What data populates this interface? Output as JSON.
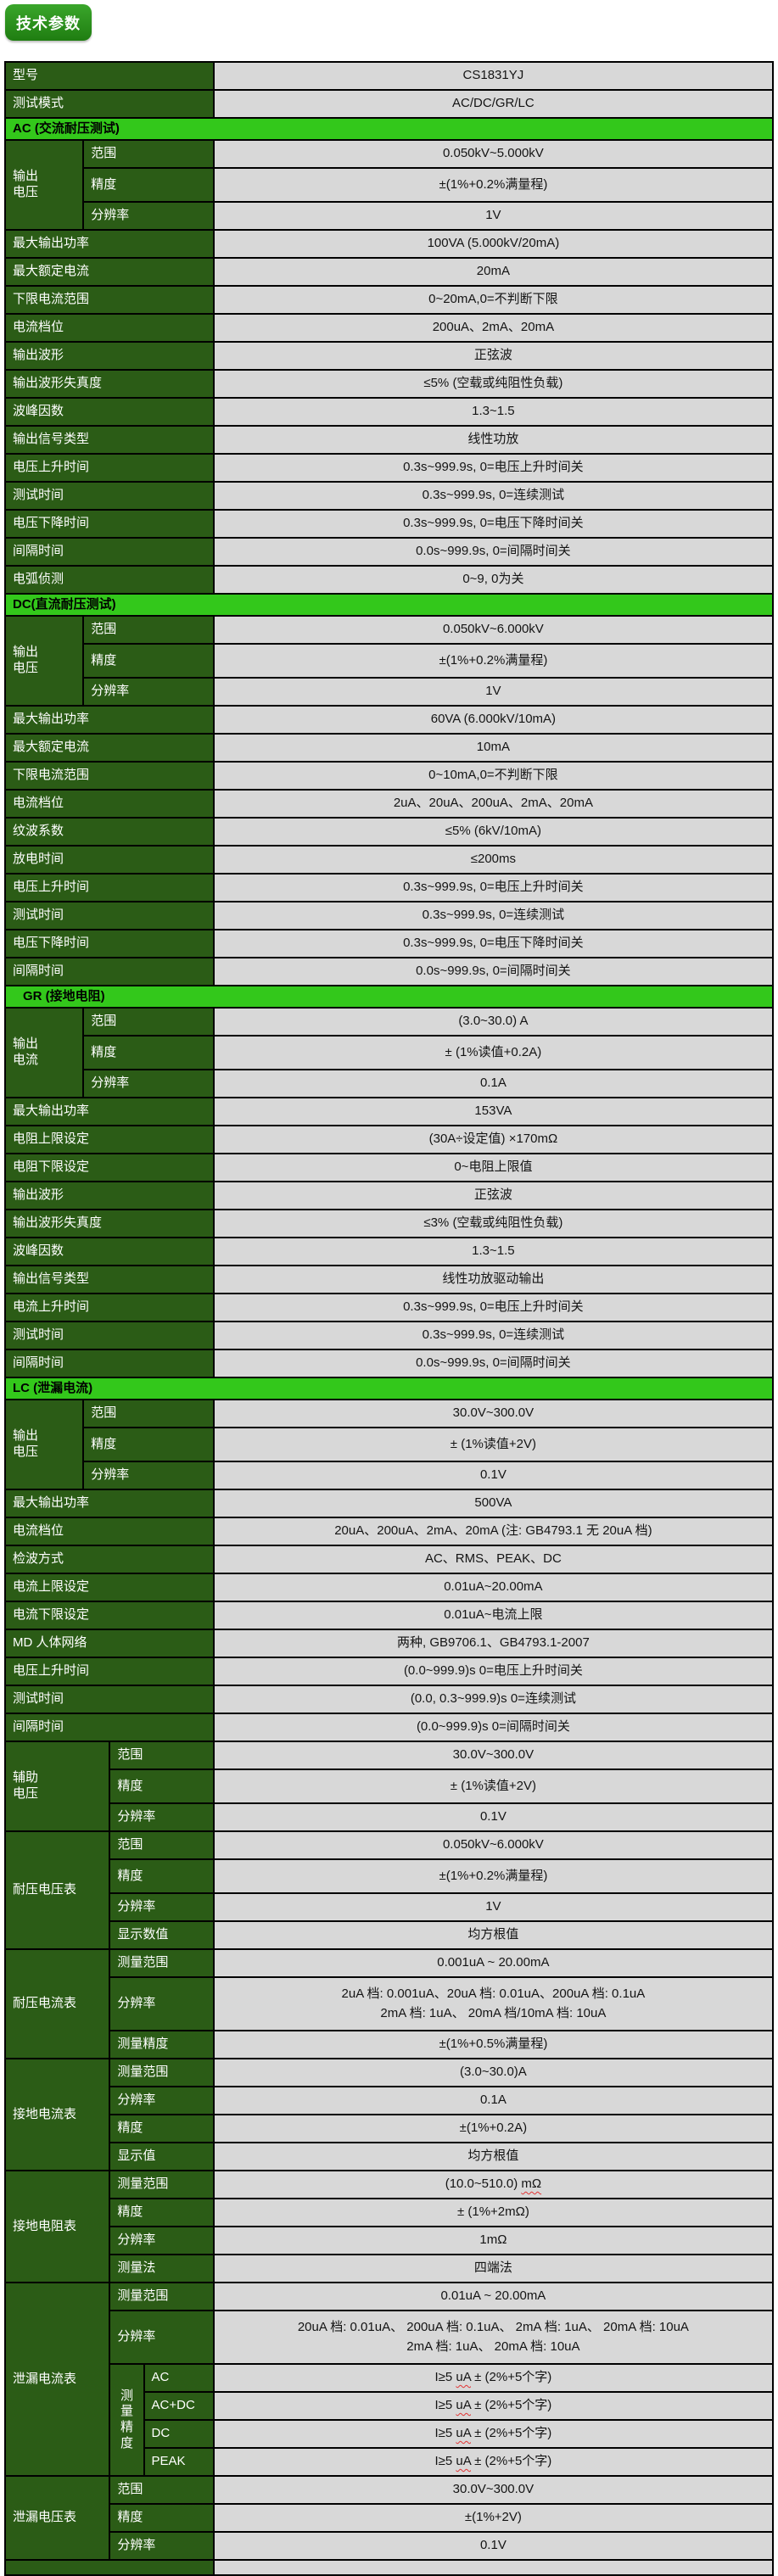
{
  "badge": {
    "label": "技术参数"
  },
  "colors": {
    "label_bg": "#2b5c16",
    "section_bg": "#33c81b",
    "value_bg": "#d8d8d8",
    "badge_top": "#3aa62b",
    "badge_bottom": "#1f7d11",
    "squiggle": "#e23333"
  },
  "table": {
    "blocks": [
      {
        "kind": "row",
        "label": "型号",
        "value": "CS1831YJ"
      },
      {
        "kind": "row",
        "label": "测试模式",
        "value": "AC/DC/GR/LC"
      },
      {
        "kind": "header",
        "text": "AC (交流耐压测试)",
        "pad": 8
      },
      {
        "kind": "group",
        "wide": false,
        "label": "输出\n电压",
        "rows": [
          {
            "label": "范围",
            "value": "0.050kV~5.000kV"
          },
          {
            "label": "精度",
            "value": "±(1%+0.2%满量程)",
            "h": 40
          },
          {
            "label": "分辨率",
            "value": "1V"
          }
        ]
      },
      {
        "kind": "row",
        "label": "最大输出功率",
        "value": "100VA (5.000kV/20mA)"
      },
      {
        "kind": "row",
        "label": "最大额定电流",
        "value": "20mA"
      },
      {
        "kind": "row",
        "label": "下限电流范围",
        "value": "0~20mA,0=不判断下限"
      },
      {
        "kind": "row",
        "label": "电流档位",
        "value": "200uA、2mA、20mA"
      },
      {
        "kind": "row",
        "label": "输出波形",
        "value": "正弦波"
      },
      {
        "kind": "row",
        "label": "输出波形失真度",
        "value": "≤5% (空载或纯阻性负载)"
      },
      {
        "kind": "row",
        "label": "波峰因数",
        "value": "1.3~1.5"
      },
      {
        "kind": "row",
        "label": "输出信号类型",
        "value": "线性功放"
      },
      {
        "kind": "row",
        "label": "电压上升时间",
        "value": "0.3s~999.9s, 0=电压上升时间关"
      },
      {
        "kind": "row",
        "label": "测试时间",
        "value": "0.3s~999.9s, 0=连续测试"
      },
      {
        "kind": "row",
        "label": "电压下降时间",
        "value": "0.3s~999.9s, 0=电压下降时间关"
      },
      {
        "kind": "row",
        "label": "间隔时间",
        "value": "0.0s~999.9s, 0=间隔时间关"
      },
      {
        "kind": "row",
        "label": "电弧侦测",
        "value": "0~9, 0为关"
      },
      {
        "kind": "header",
        "text": "DC(直流耐压测试)",
        "pad": 8
      },
      {
        "kind": "group",
        "wide": false,
        "label": "输出\n电压",
        "rows": [
          {
            "label": "范围",
            "value": "0.050kV~6.000kV"
          },
          {
            "label": "精度",
            "value": "±(1%+0.2%满量程)",
            "h": 40
          },
          {
            "label": "分辨率",
            "value": "1V"
          }
        ]
      },
      {
        "kind": "row",
        "label": "最大输出功率",
        "value": "60VA (6.000kV/10mA)"
      },
      {
        "kind": "row",
        "label": "最大额定电流",
        "value": "10mA"
      },
      {
        "kind": "row",
        "label": "下限电流范围",
        "value": "0~10mA,0=不判断下限"
      },
      {
        "kind": "row",
        "label": "电流档位",
        "value": "2uA、20uA、200uA、2mA、20mA"
      },
      {
        "kind": "row",
        "label": "纹波系数",
        "value": "≤5% (6kV/10mA)"
      },
      {
        "kind": "row",
        "label": "放电时间",
        "value": "≤200ms"
      },
      {
        "kind": "row",
        "label": "电压上升时间",
        "value": "0.3s~999.9s, 0=电压上升时间关"
      },
      {
        "kind": "row",
        "label": "测试时间",
        "value": "0.3s~999.9s, 0=连续测试"
      },
      {
        "kind": "row",
        "label": "电压下降时间",
        "value": "0.3s~999.9s, 0=电压下降时间关"
      },
      {
        "kind": "row",
        "label": "间隔时间",
        "value": "0.0s~999.9s, 0=间隔时间关"
      },
      {
        "kind": "header",
        "text": "GR (接地电阻)",
        "pad": 20
      },
      {
        "kind": "group",
        "wide": false,
        "label": "输出\n电流",
        "rows": [
          {
            "label": "范围",
            "value": "(3.0~30.0) A"
          },
          {
            "label": "精度",
            "value": "± (1%读值+0.2A)",
            "h": 40
          },
          {
            "label": "分辨率",
            "value": "0.1A"
          }
        ]
      },
      {
        "kind": "row",
        "label": "最大输出功率",
        "value": "153VA"
      },
      {
        "kind": "row",
        "label": "电阻上限设定",
        "value": "(30A÷设定值) ×170mΩ"
      },
      {
        "kind": "row",
        "label": "电阻下限设定",
        "value": "0~电阻上限值"
      },
      {
        "kind": "row",
        "label": "输出波形",
        "value": "正弦波"
      },
      {
        "kind": "row",
        "label": "输出波形失真度",
        "value": "≤3% (空载或纯阻性负载)"
      },
      {
        "kind": "row",
        "label": "波峰因数",
        "value": "1.3~1.5"
      },
      {
        "kind": "row",
        "label": "输出信号类型",
        "value": "线性功放驱动输出"
      },
      {
        "kind": "row",
        "label": "电流上升时间",
        "value": "0.3s~999.9s, 0=电压上升时间关"
      },
      {
        "kind": "row",
        "label": "测试时间",
        "value": "0.3s~999.9s, 0=连续测试"
      },
      {
        "kind": "row",
        "label": "间隔时间",
        "value": "0.0s~999.9s, 0=间隔时间关"
      },
      {
        "kind": "header",
        "text": "LC (泄漏电流)",
        "pad": 8
      },
      {
        "kind": "group",
        "wide": false,
        "label": "输出\n电压",
        "rows": [
          {
            "label": "范围",
            "value": "30.0V~300.0V"
          },
          {
            "label": "精度",
            "value": "± (1%读值+2V)",
            "h": 40
          },
          {
            "label": "分辨率",
            "value": "0.1V"
          }
        ]
      },
      {
        "kind": "row",
        "label": "最大输出功率",
        "value": "500VA"
      },
      {
        "kind": "row",
        "label": "电流档位",
        "value": "20uA、200uA、2mA、20mA (注: GB4793.1 无 20uA 档)"
      },
      {
        "kind": "row",
        "label": "检波方式",
        "value": "AC、RMS、PEAK、DC"
      },
      {
        "kind": "row",
        "label": "电流上限设定",
        "value": "0.01uA~20.00mA"
      },
      {
        "kind": "row",
        "label": "电流下限设定",
        "value": "0.01uA~电流上限"
      },
      {
        "kind": "row",
        "label": "MD 人体网络",
        "value": "两种, GB9706.1、GB4793.1-2007"
      },
      {
        "kind": "row",
        "label": "电压上升时间",
        "value": "(0.0~999.9)s  0=电压上升时间关"
      },
      {
        "kind": "row",
        "label": "测试时间",
        "value": "(0.0, 0.3~999.9)s  0=连续测试"
      },
      {
        "kind": "row",
        "label": "间隔时间",
        "value": "(0.0~999.9)s  0=间隔时间关"
      },
      {
        "kind": "group",
        "wide": true,
        "label": "辅助\n电压",
        "rows": [
          {
            "label": "范围",
            "value": "30.0V~300.0V"
          },
          {
            "label": "精度",
            "value": "± (1%读值+2V)",
            "h": 40
          },
          {
            "label": "分辨率",
            "value": "0.1V"
          }
        ]
      },
      {
        "kind": "group",
        "wide": true,
        "label": "耐压电压表",
        "rows": [
          {
            "label": "范围",
            "value": "0.050kV~6.000kV"
          },
          {
            "label": "精度",
            "value": "±(1%+0.2%满量程)",
            "h": 40
          },
          {
            "label": "分辨率",
            "value": "1V"
          },
          {
            "label": "显示数值",
            "value": "均方根值"
          }
        ]
      },
      {
        "kind": "group",
        "wide": true,
        "label": "耐压电流表",
        "rows": [
          {
            "label": "测量范围",
            "value": "0.001uA ~ 20.00mA"
          },
          {
            "label": "分辨率",
            "lines": [
              "2uA 档: 0.001uA、20uA 档: 0.01uA、200uA 档: 0.1uA",
              "2mA 档: 1uA、   20mA 档/10mA 档: 10uA"
            ]
          },
          {
            "label": "测量精度",
            "value": "±(1%+0.5%满量程)"
          }
        ]
      },
      {
        "kind": "group",
        "wide": true,
        "label": "接地电流表",
        "rows": [
          {
            "label": "测量范围",
            "value": "(3.0~30.0)A"
          },
          {
            "label": "分辨率",
            "value": "0.1A"
          },
          {
            "label": "精度",
            "value": "±(1%+0.2A)"
          },
          {
            "label": "显示值",
            "value": "均方根值"
          }
        ]
      },
      {
        "kind": "group",
        "wide": true,
        "label": "接地电阻表",
        "rows": [
          {
            "label": "测量范围",
            "parts": [
              {
                "t": "(10.0~510.0) "
              },
              {
                "t": "mΩ",
                "sq": true
              }
            ]
          },
          {
            "label": "精度",
            "value": "± (1%+2mΩ)"
          },
          {
            "label": "分辨率",
            "value": "1mΩ"
          },
          {
            "label": "测量法",
            "value": "四端法"
          }
        ]
      },
      {
        "kind": "group",
        "wide": true,
        "label": "泄漏电流表",
        "rows": [
          {
            "label": "测量范围",
            "value": "0.01uA ~ 20.00mA"
          },
          {
            "label": "分辨率",
            "lines": [
              "20uA 档: 0.01uA、 200uA 档: 0.1uA、 2mA 档: 1uA、 20mA 档: 10uA",
              "2mA 档: 1uA、    20mA 档: 10uA"
            ]
          },
          {
            "vlabel": "测\n量\n精\n度",
            "vrows": [
              {
                "sub": "AC",
                "parts": [
                  {
                    "t": "I≥5 "
                  },
                  {
                    "t": "uA",
                    "sq": true
                  },
                  {
                    "t": "  ± (2%+5个字)"
                  }
                ]
              },
              {
                "sub": "AC+DC",
                "parts": [
                  {
                    "t": "I≥5 "
                  },
                  {
                    "t": "uA",
                    "sq": true
                  },
                  {
                    "t": "  ± (2%+5个字)"
                  }
                ]
              },
              {
                "sub": "DC",
                "parts": [
                  {
                    "t": "I≥5 "
                  },
                  {
                    "t": "uA",
                    "sq": true
                  },
                  {
                    "t": "  ± (2%+5个字)"
                  }
                ]
              },
              {
                "sub": "PEAK",
                "parts": [
                  {
                    "t": "I≥5 "
                  },
                  {
                    "t": "uA",
                    "sq": true
                  },
                  {
                    "t": "  ± (2%+5个字)"
                  }
                ]
              }
            ]
          }
        ]
      },
      {
        "kind": "group",
        "wide": true,
        "label": "泄漏电压表",
        "rows": [
          {
            "label": "范围",
            "value": "30.0V~300.0V"
          },
          {
            "label": "精度",
            "value": "±(1%+2V)"
          },
          {
            "label": "分辨率",
            "value": "0.1V"
          }
        ]
      },
      {
        "kind": "row",
        "label": "",
        "value": "",
        "h": 18
      }
    ]
  }
}
